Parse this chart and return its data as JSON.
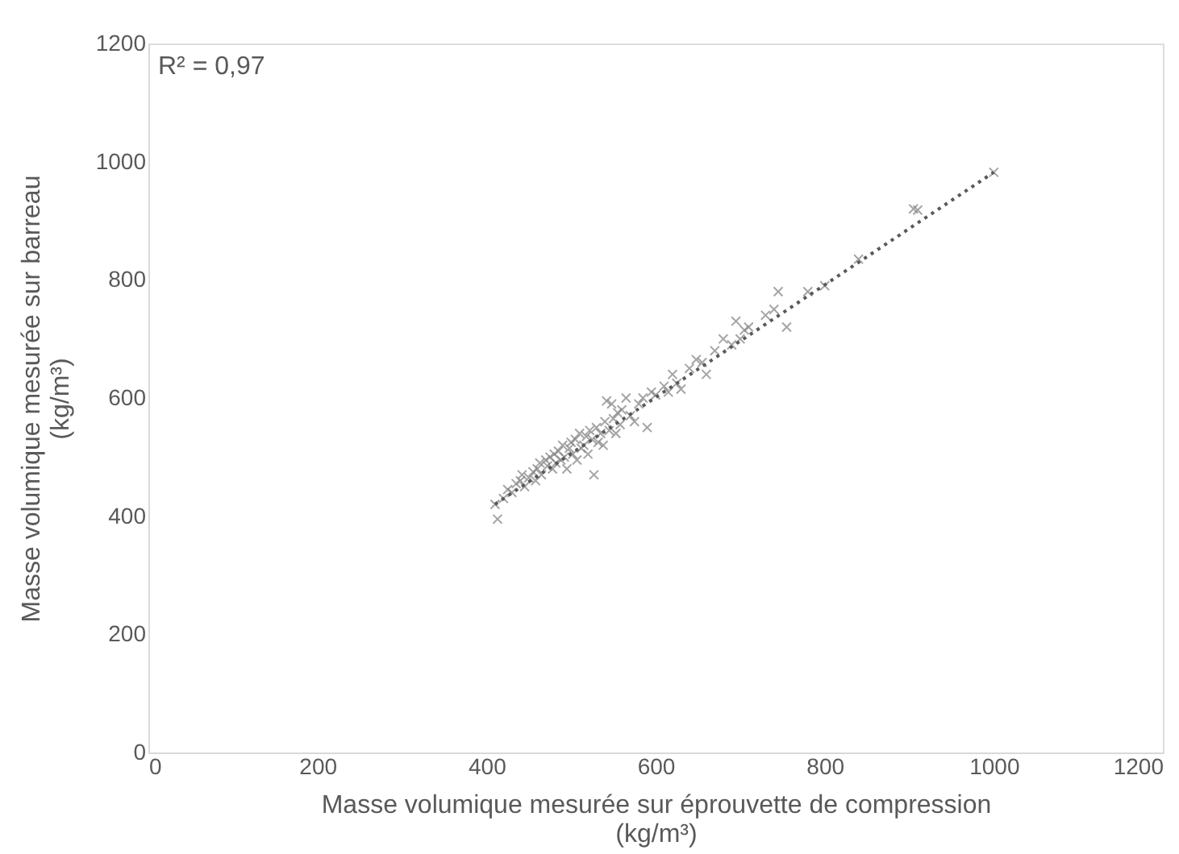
{
  "chart_data": {
    "type": "scatter",
    "xlabel": "Masse volumique mesurée sur éprouvette de compression\n(kg/m³)",
    "ylabel": "Masse volumique  mesurée sur barreau\n(kg/m³)",
    "xlim": [
      0,
      1200
    ],
    "xticks": [
      0,
      200,
      400,
      600,
      800,
      1000,
      1200
    ],
    "ylim": [
      0,
      1200
    ],
    "yticks": [
      0,
      200,
      400,
      600,
      800,
      1000,
      1200
    ],
    "grid": false,
    "annotations": [
      "R² = 0,97"
    ],
    "series": [
      {
        "type": "scatter",
        "color": "#7f7f7f",
        "marker": "cross",
        "x": [
          410,
          413,
          420,
          425,
          430,
          435,
          440,
          442,
          445,
          450,
          455,
          458,
          460,
          463,
          465,
          470,
          472,
          475,
          478,
          480,
          482,
          485,
          488,
          490,
          492,
          495,
          498,
          500,
          502,
          505,
          507,
          510,
          512,
          515,
          518,
          520,
          522,
          525,
          527,
          530,
          532,
          535,
          538,
          540,
          542,
          545,
          548,
          550,
          553,
          555,
          558,
          560,
          565,
          570,
          575,
          580,
          585,
          590,
          595,
          600,
          610,
          615,
          620,
          625,
          630,
          640,
          648,
          655,
          660,
          670,
          680,
          690,
          695,
          700,
          705,
          710,
          730,
          740,
          745,
          755,
          780,
          800,
          840,
          905,
          910,
          1000
        ],
        "values": [
          420,
          395,
          430,
          445,
          440,
          455,
          460,
          470,
          450,
          465,
          475,
          460,
          480,
          490,
          470,
          495,
          485,
          500,
          480,
          505,
          490,
          510,
          495,
          520,
          500,
          480,
          515,
          525,
          505,
          530,
          495,
          540,
          515,
          520,
          535,
          505,
          545,
          530,
          470,
          550,
          525,
          540,
          520,
          560,
          595,
          545,
          590,
          565,
          540,
          575,
          555,
          580,
          600,
          570,
          560,
          590,
          600,
          550,
          610,
          605,
          620,
          610,
          640,
          625,
          615,
          650,
          665,
          660,
          640,
          680,
          700,
          690,
          730,
          700,
          715,
          720,
          740,
          750,
          780,
          720,
          780,
          790,
          835,
          920,
          918,
          982
        ]
      },
      {
        "type": "line",
        "color": "#595959",
        "line_style": "dotted",
        "x": [
          410,
          1000
        ],
        "values": [
          420,
          982
        ]
      }
    ]
  }
}
